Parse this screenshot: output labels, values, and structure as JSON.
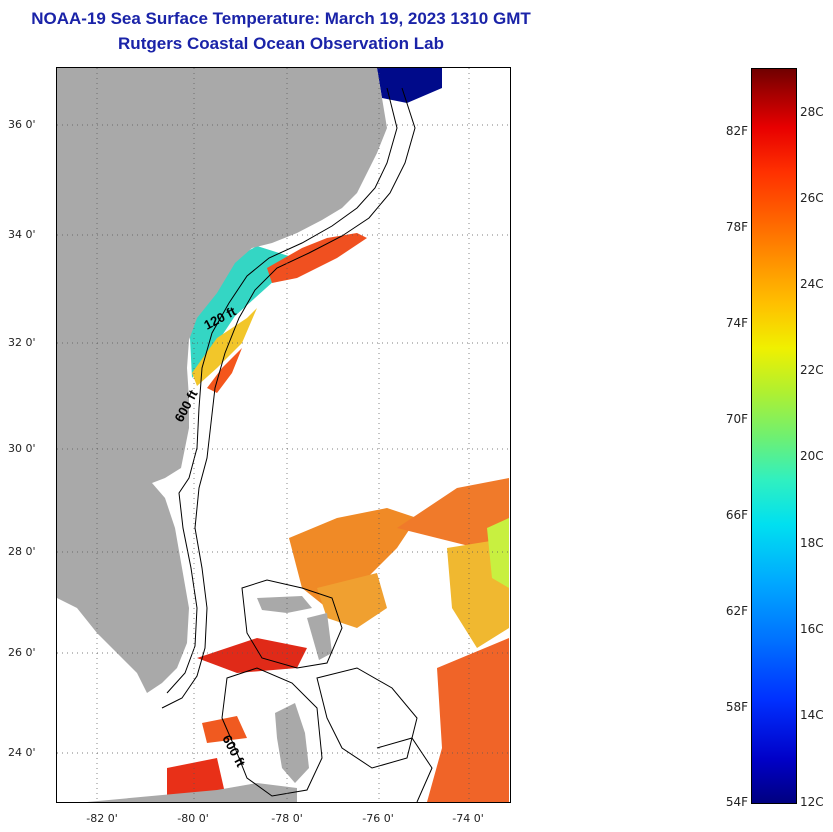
{
  "header": {
    "title": "NOAA-19 Sea Surface Temperature:  March 19, 2023 1310 GMT",
    "subtitle": "Rutgers Coastal Ocean Observation Lab"
  },
  "map": {
    "lat_ticks": [
      "36 0'",
      "34 0'",
      "32 0'",
      "30 0'",
      "28 0'",
      "26 0'",
      "24 0'"
    ],
    "lon_ticks": [
      "-82 0'",
      "-80 0'",
      "-78 0'",
      "-76 0'",
      "-74 0'"
    ],
    "contour_labels": [
      "120 ft",
      "600 ft",
      "600 ft"
    ],
    "colors": {
      "land": "#a9a9a9",
      "ocean_nodata": "#ffffff",
      "title": "#1a23a8"
    }
  },
  "colorbar": {
    "fahrenheit": [
      "82F",
      "78F",
      "74F",
      "70F",
      "66F",
      "62F",
      "58F",
      "54F"
    ],
    "celsius": [
      "28C",
      "26C",
      "24C",
      "22C",
      "20C",
      "18C",
      "16C",
      "14C",
      "12C"
    ],
    "range_f": [
      54,
      84
    ]
  }
}
